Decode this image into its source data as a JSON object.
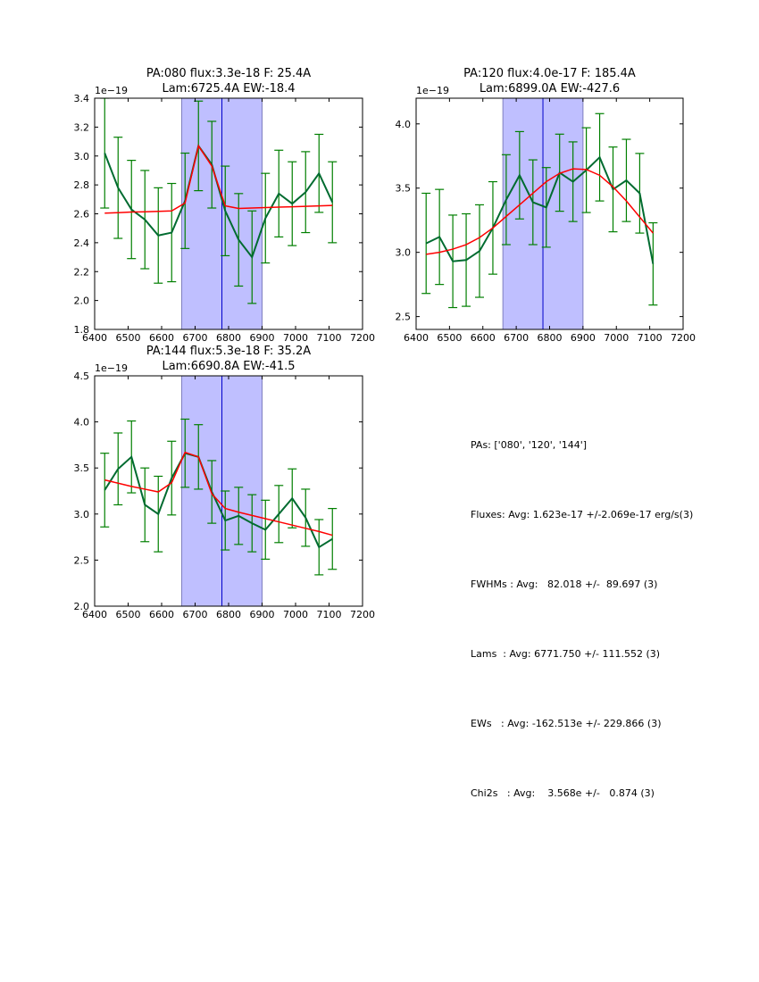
{
  "chart_data": [
    {
      "type": "line",
      "title_line1": "PA:080 flux:3.3e-18 F: 25.4A",
      "title_line2": "Lam:6725.4A EW:-18.4",
      "offset_label": "1e−19",
      "xlim": [
        6400,
        7200
      ],
      "ylim": [
        1.8,
        3.4
      ],
      "xticks": [
        6400,
        6500,
        6600,
        6700,
        6800,
        6900,
        7000,
        7100,
        7200
      ],
      "yticks": [
        1.8,
        2.0,
        2.2,
        2.4,
        2.6,
        2.8,
        3.0,
        3.2,
        3.4
      ],
      "ytick_labels": [
        "1.8",
        "2.0",
        "2.2",
        "2.4",
        "2.6",
        "2.8",
        "3.0",
        "3.2",
        "3.4"
      ],
      "band": [
        6660,
        6900
      ],
      "vline": 6780,
      "x": [
        6430,
        6470,
        6510,
        6550,
        6590,
        6630,
        6670,
        6710,
        6750,
        6790,
        6830,
        6870,
        6910,
        6950,
        6990,
        7030,
        7070,
        7110
      ],
      "series": [
        {
          "name": "data",
          "color": "#006b30",
          "values": [
            3.02,
            2.78,
            2.63,
            2.56,
            2.45,
            2.47,
            2.69,
            3.07,
            2.94,
            2.62,
            2.42,
            2.3,
            2.57,
            2.74,
            2.67,
            2.75,
            2.88,
            2.68
          ],
          "errors": [
            0.38,
            0.35,
            0.34,
            0.34,
            0.33,
            0.34,
            0.33,
            0.31,
            0.3,
            0.31,
            0.32,
            0.32,
            0.31,
            0.3,
            0.29,
            0.28,
            0.27,
            0.28
          ]
        },
        {
          "name": "model",
          "color": "#ff0000",
          "values": [
            2.605,
            2.608,
            2.612,
            2.614,
            2.617,
            2.62,
            2.675,
            3.07,
            2.93,
            2.655,
            2.637,
            2.64,
            2.643,
            2.646,
            2.649,
            2.652,
            2.655,
            2.658
          ]
        }
      ]
    },
    {
      "type": "line",
      "title_line1": "PA:120 flux:4.0e-17 F: 185.4A",
      "title_line2": "Lam:6899.0A EW:-427.6",
      "offset_label": "1e−19",
      "xlim": [
        6400,
        7200
      ],
      "ylim": [
        2.4,
        4.2
      ],
      "xticks": [
        6400,
        6500,
        6600,
        6700,
        6800,
        6900,
        7000,
        7100,
        7200
      ],
      "yticks": [
        2.5,
        3.0,
        3.5,
        4.0
      ],
      "ytick_labels": [
        "2.5",
        "3.0",
        "3.5",
        "4.0"
      ],
      "band": [
        6660,
        6900
      ],
      "vline": 6780,
      "x": [
        6430,
        6470,
        6510,
        6550,
        6590,
        6630,
        6670,
        6710,
        6750,
        6790,
        6830,
        6870,
        6910,
        6950,
        6990,
        7030,
        7070,
        7110
      ],
      "series": [
        {
          "name": "data",
          "color": "#006b30",
          "values": [
            3.07,
            3.12,
            2.93,
            2.94,
            3.01,
            3.19,
            3.41,
            3.6,
            3.39,
            3.35,
            3.62,
            3.55,
            3.64,
            3.74,
            3.49,
            3.56,
            3.46,
            2.91
          ],
          "errors": [
            0.39,
            0.37,
            0.36,
            0.36,
            0.36,
            0.36,
            0.35,
            0.34,
            0.33,
            0.31,
            0.3,
            0.31,
            0.33,
            0.34,
            0.33,
            0.32,
            0.31,
            0.32
          ]
        },
        {
          "name": "model",
          "color": "#ff0000",
          "values": [
            2.985,
            3.0,
            3.025,
            3.06,
            3.115,
            3.19,
            3.28,
            3.37,
            3.46,
            3.55,
            3.615,
            3.65,
            3.645,
            3.6,
            3.51,
            3.4,
            3.275,
            3.15
          ]
        }
      ]
    },
    {
      "type": "line",
      "title_line1": "PA:144 flux:5.3e-18 F: 35.2A",
      "title_line2": "Lam:6690.8A EW:-41.5",
      "offset_label": "1e−19",
      "xlim": [
        6400,
        7200
      ],
      "ylim": [
        2.0,
        4.5
      ],
      "xticks": [
        6400,
        6500,
        6600,
        6700,
        6800,
        6900,
        7000,
        7100,
        7200
      ],
      "yticks": [
        2.0,
        2.5,
        3.0,
        3.5,
        4.0,
        4.5
      ],
      "ytick_labels": [
        "2.0",
        "2.5",
        "3.0",
        "3.5",
        "4.0",
        "4.5"
      ],
      "band": [
        6660,
        6900
      ],
      "vline": 6780,
      "x": [
        6430,
        6470,
        6510,
        6550,
        6590,
        6630,
        6670,
        6710,
        6750,
        6790,
        6830,
        6870,
        6910,
        6950,
        6990,
        7030,
        7070,
        7110
      ],
      "series": [
        {
          "name": "data",
          "color": "#006b30",
          "values": [
            3.26,
            3.49,
            3.62,
            3.1,
            3.0,
            3.39,
            3.66,
            3.62,
            3.24,
            2.93,
            2.98,
            2.9,
            2.83,
            3.0,
            3.17,
            2.96,
            2.64,
            2.73
          ],
          "errors": [
            0.4,
            0.39,
            0.39,
            0.4,
            0.41,
            0.4,
            0.37,
            0.35,
            0.34,
            0.32,
            0.31,
            0.31,
            0.32,
            0.31,
            0.32,
            0.31,
            0.3,
            0.33
          ]
        },
        {
          "name": "model",
          "color": "#ff0000",
          "values": [
            3.37,
            3.335,
            3.3,
            3.27,
            3.24,
            3.34,
            3.67,
            3.62,
            3.22,
            3.06,
            3.02,
            2.985,
            2.95,
            2.915,
            2.88,
            2.845,
            2.81,
            2.77
          ]
        }
      ]
    }
  ],
  "stats": {
    "pas": "PAs: ['080', '120', '144']",
    "fluxes": "Fluxes: Avg: 1.623e-17 +/-2.069e-17 erg/s(3)",
    "fwhms": "FWHMs : Avg:   82.018 +/-  89.697 (3)",
    "lams": "Lams  : Avg: 6771.750 +/- 111.552 (3)",
    "ews": "EWs   : Avg: -162.513e +/- 229.866 (3)",
    "chi2s": "Chi2s   : Avg:    3.568e +/-   0.874 (3)"
  },
  "colors": {
    "band_fill": "#bfbfff",
    "band_edge": "#7f7fbf",
    "vline": "#0000cc",
    "data_line": "#006b30",
    "error_bar": "#007f00",
    "model_line": "#ff0000"
  }
}
